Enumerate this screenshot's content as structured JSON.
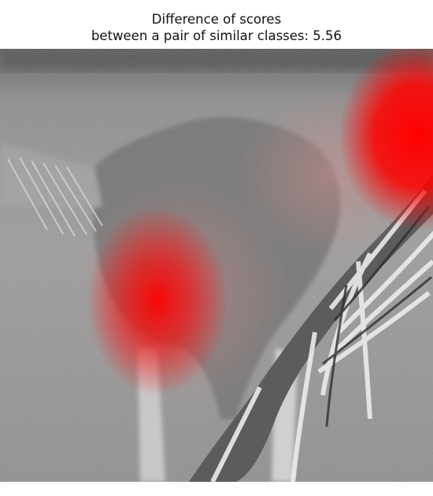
{
  "figure": {
    "title_line1": "Difference of scores",
    "title_line2": "between a pair of similar classes: 5.56"
  },
  "image": {
    "subject": "grayscale photo of a dog partially occluded by a striped cloth on grass",
    "overlay": "red saliency heatmap",
    "hotspots": [
      "dog hindquarters",
      "upper-right region"
    ],
    "colors": {
      "heat": "#ff0000",
      "background": "#ffffff"
    }
  }
}
